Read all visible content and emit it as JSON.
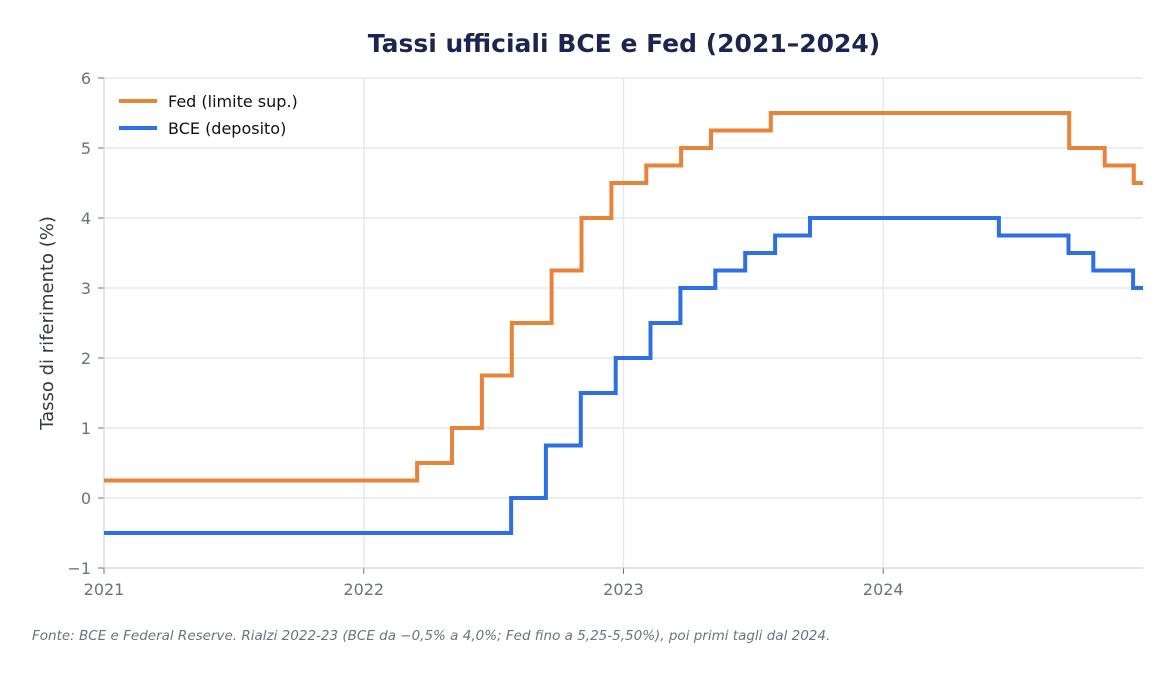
{
  "chart_data": {
    "type": "line",
    "step": "post",
    "title": "Tassi ufficiali BCE e Fed (2021–2024)",
    "xlabel": "",
    "ylabel": "Tasso di riferimento (%)",
    "xlim": [
      2021.0,
      2025.0
    ],
    "ylim": [
      -1,
      6
    ],
    "x_ticks": [
      2021,
      2022,
      2023,
      2024
    ],
    "x_tick_labels": [
      "2021",
      "2022",
      "2023",
      "2024"
    ],
    "y_ticks": [
      -1,
      0,
      1,
      2,
      3,
      4,
      5,
      6
    ],
    "y_tick_labels": [
      "−1",
      "0",
      "1",
      "2",
      "3",
      "4",
      "5",
      "6"
    ],
    "grid": true,
    "legend_position": "top-left",
    "series": [
      {
        "name": "Fed (limite sup.)",
        "color": "#e8833a",
        "points": [
          [
            "2021-01-01",
            0.25
          ],
          [
            "2022-03-17",
            0.5
          ],
          [
            "2022-05-05",
            1.0
          ],
          [
            "2022-06-16",
            1.75
          ],
          [
            "2022-07-28",
            2.5
          ],
          [
            "2022-09-22",
            3.25
          ],
          [
            "2022-11-03",
            4.0
          ],
          [
            "2022-12-15",
            4.5
          ],
          [
            "2023-02-02",
            4.75
          ],
          [
            "2023-03-23",
            5.0
          ],
          [
            "2023-05-04",
            5.25
          ],
          [
            "2023-07-27",
            5.5
          ],
          [
            "2024-09-19",
            5.0
          ],
          [
            "2024-11-08",
            4.75
          ],
          [
            "2024-12-19",
            4.5
          ]
        ]
      },
      {
        "name": "BCE (deposito)",
        "color": "#2f6fe6",
        "points": [
          [
            "2021-01-01",
            -0.5
          ],
          [
            "2022-07-27",
            0.0
          ],
          [
            "2022-09-14",
            0.75
          ],
          [
            "2022-11-02",
            1.5
          ],
          [
            "2022-12-21",
            2.0
          ],
          [
            "2023-02-08",
            2.5
          ],
          [
            "2023-03-22",
            3.0
          ],
          [
            "2023-05-10",
            3.25
          ],
          [
            "2023-06-21",
            3.5
          ],
          [
            "2023-08-02",
            3.75
          ],
          [
            "2023-09-20",
            4.0
          ],
          [
            "2024-06-12",
            3.75
          ],
          [
            "2024-09-18",
            3.5
          ],
          [
            "2024-10-23",
            3.25
          ],
          [
            "2024-12-18",
            3.0
          ]
        ]
      }
    ],
    "source_note": "Fonte: BCE e Federal Reserve. Rialzi 2022-23 (BCE da −0,5% a 4,0%; Fed fino a 5,25-5,50%), poi primi tagli dal 2024."
  }
}
